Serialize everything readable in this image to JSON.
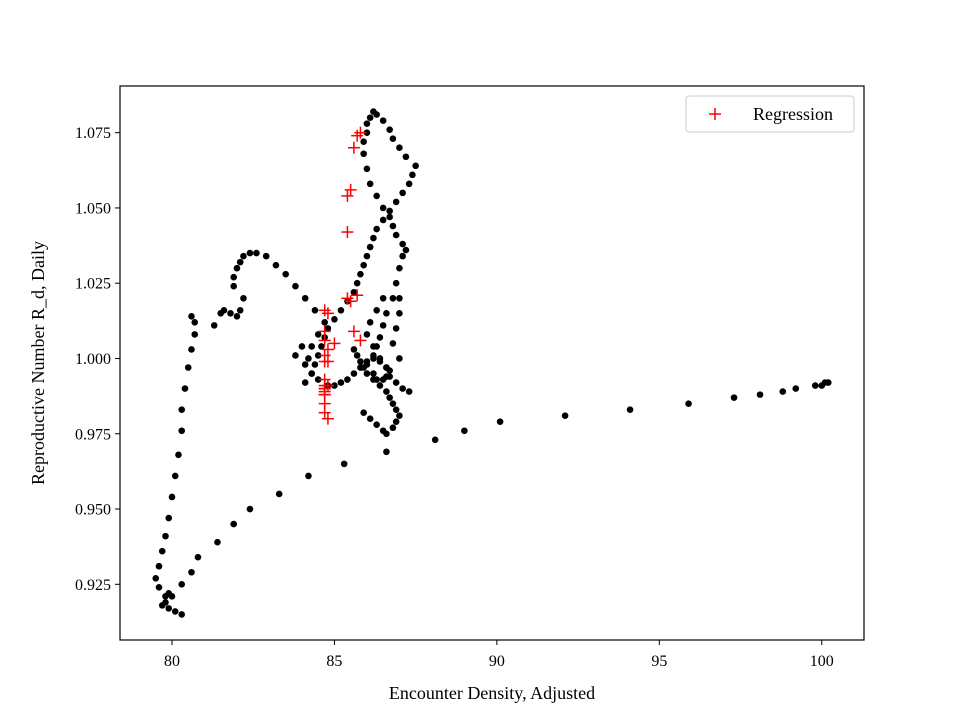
{
  "chart_data": {
    "type": "scatter",
    "title": "",
    "xlabel": "Encounter Density, Adjusted",
    "ylabel": "Reproductive Number R_d, Daily",
    "xlim": [
      78.4,
      101.3
    ],
    "ylim": [
      0.9065,
      1.0905
    ],
    "xticks": [
      80,
      85,
      90,
      95,
      100
    ],
    "yticks": [
      0.925,
      0.95,
      0.975,
      1.0,
      1.025,
      1.05,
      1.075
    ],
    "xtick_labels": [
      "80",
      "85",
      "90",
      "95",
      "100"
    ],
    "ytick_labels": [
      "0.925",
      "0.950",
      "0.975",
      "1.000",
      "1.025",
      "1.050",
      "1.075"
    ],
    "grid": false,
    "legend_position": "upper-right",
    "series": [
      {
        "name": "",
        "marker": "dot",
        "color": "#000000",
        "x": [
          80.3,
          80.1,
          79.9,
          79.8,
          79.8,
          79.9,
          80.0,
          79.7,
          79.6,
          79.5,
          79.6,
          79.7,
          79.8,
          79.9,
          80.0,
          80.1,
          80.2,
          80.3,
          80.3,
          80.4,
          80.5,
          80.6,
          80.7,
          80.7,
          80.6,
          81.3,
          81.5,
          81.6,
          81.8,
          82.0,
          82.1,
          82.2,
          81.9,
          81.9,
          82.0,
          82.1,
          82.2,
          82.4,
          82.6,
          82.9,
          83.2,
          83.5,
          83.8,
          84.1,
          84.4,
          84.7,
          84.5,
          84.3,
          84.2,
          83.8,
          84.0,
          84.1,
          84.3,
          84.5,
          84.8,
          85.0,
          85.2,
          85.4,
          85.6,
          85.8,
          86.0,
          86.2,
          86.3,
          86.4,
          86.5,
          86.6,
          86.8,
          86.5,
          86.3,
          86.1,
          86.0,
          86.2,
          86.4,
          86.6,
          86.7,
          86.6,
          86.5,
          86.3,
          86.2,
          86.0,
          86.2,
          86.4,
          86.6,
          86.7,
          86.9,
          87.1,
          87.3,
          87.0,
          86.8,
          86.9,
          87.0,
          87.0,
          86.9,
          87.0,
          87.1,
          87.2,
          87.1,
          86.9,
          86.8,
          86.7,
          86.5,
          86.3,
          86.1,
          86.0,
          85.9,
          85.9,
          86.0,
          86.0,
          86.1,
          86.2,
          86.3,
          86.5,
          86.7,
          86.8,
          87.0,
          87.2,
          87.5,
          87.4,
          87.3,
          87.1,
          86.9,
          86.7,
          86.5,
          86.3,
          86.2,
          86.1,
          86.0,
          85.9,
          85.8,
          85.7,
          85.6,
          85.4,
          85.2,
          85.0,
          84.8,
          84.7,
          84.6,
          84.5,
          84.4,
          84.3,
          84.1,
          85.9,
          86.1,
          86.3,
          86.5,
          86.6,
          86.8,
          86.9,
          87.0,
          86.9,
          86.8,
          86.7,
          86.6,
          86.4,
          86.2,
          86.0,
          85.9,
          85.8,
          85.7,
          85.6,
          86.6,
          85.3,
          84.2,
          83.3,
          82.4,
          81.9,
          81.4,
          80.8,
          80.6,
          80.3,
          88.1,
          89.0,
          90.1,
          92.1,
          94.1,
          95.9,
          97.3,
          98.1,
          98.8,
          99.2,
          99.8,
          100.0,
          100.1,
          100.2
        ],
        "y": [
          0.915,
          0.916,
          0.917,
          0.919,
          0.921,
          0.922,
          0.921,
          0.918,
          0.924,
          0.927,
          0.931,
          0.936,
          0.941,
          0.947,
          0.954,
          0.961,
          0.968,
          0.976,
          0.983,
          0.99,
          0.997,
          1.003,
          1.008,
          1.012,
          1.014,
          1.011,
          1.015,
          1.016,
          1.015,
          1.014,
          1.016,
          1.02,
          1.024,
          1.027,
          1.03,
          1.032,
          1.034,
          1.035,
          1.035,
          1.034,
          1.031,
          1.028,
          1.024,
          1.02,
          1.016,
          1.012,
          1.008,
          1.004,
          1.0,
          1.001,
          1.004,
          0.998,
          0.995,
          0.993,
          0.991,
          0.991,
          0.992,
          0.993,
          0.995,
          0.997,
          0.999,
          1.001,
          1.004,
          1.007,
          1.011,
          1.015,
          1.02,
          1.02,
          1.016,
          1.012,
          1.008,
          1.004,
          1.0,
          0.997,
          0.996,
          0.994,
          0.993,
          0.993,
          0.995,
          0.998,
          1.0,
          0.999,
          0.997,
          0.994,
          0.992,
          0.99,
          0.989,
          1.0,
          1.005,
          1.01,
          1.015,
          1.02,
          1.025,
          1.03,
          1.034,
          1.036,
          1.038,
          1.041,
          1.044,
          1.047,
          1.05,
          1.054,
          1.058,
          1.063,
          1.068,
          1.072,
          1.075,
          1.078,
          1.08,
          1.082,
          1.081,
          1.079,
          1.076,
          1.073,
          1.07,
          1.067,
          1.064,
          1.061,
          1.058,
          1.055,
          1.052,
          1.049,
          1.046,
          1.043,
          1.04,
          1.037,
          1.034,
          1.031,
          1.028,
          1.025,
          1.022,
          1.019,
          1.016,
          1.013,
          1.01,
          1.007,
          1.004,
          1.001,
          0.998,
          0.995,
          0.992,
          0.982,
          0.98,
          0.978,
          0.976,
          0.975,
          0.977,
          0.979,
          0.981,
          0.983,
          0.985,
          0.987,
          0.989,
          0.991,
          0.993,
          0.995,
          0.997,
          0.999,
          1.001,
          1.003,
          0.969,
          0.965,
          0.961,
          0.955,
          0.95,
          0.945,
          0.939,
          0.934,
          0.929,
          0.925,
          0.973,
          0.976,
          0.979,
          0.981,
          0.983,
          0.985,
          0.987,
          0.988,
          0.989,
          0.99,
          0.991,
          0.991,
          0.992,
          0.992
        ]
      },
      {
        "name": "Regression",
        "marker": "plus",
        "color": "#ff0000",
        "x": [
          85.8,
          85.7,
          85.6,
          85.5,
          85.4,
          85.4,
          85.4,
          85.5,
          85.7,
          85.6,
          85.8,
          84.7,
          84.8,
          84.7,
          84.7,
          84.8,
          84.7,
          84.7,
          84.7,
          84.7,
          84.7,
          84.7,
          84.7,
          84.7,
          84.7,
          84.8,
          84.7,
          84.7,
          84.8,
          85.0,
          84.8
        ],
        "y": [
          1.075,
          1.074,
          1.07,
          1.056,
          1.054,
          1.042,
          1.02,
          1.019,
          1.021,
          1.009,
          1.006,
          1.016,
          1.015,
          1.009,
          1.006,
          1.003,
          1.001,
          0.999,
          0.993,
          0.991,
          0.99,
          0.989,
          0.988,
          0.985,
          0.982,
          0.98,
          0.99,
          0.988,
          0.991,
          1.005,
          0.999
        ]
      }
    ]
  }
}
